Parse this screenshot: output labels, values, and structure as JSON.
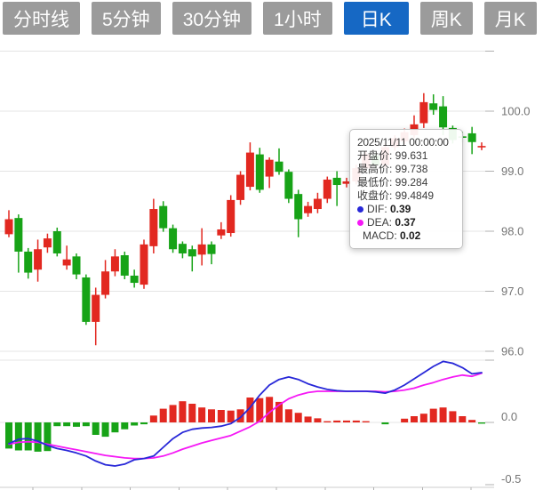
{
  "tabs": {
    "items": [
      {
        "label": "分时线",
        "name": "timeline",
        "active": false
      },
      {
        "label": "5分钟",
        "name": "5min",
        "active": false
      },
      {
        "label": "30分钟",
        "name": "30min",
        "active": false
      },
      {
        "label": "1小时",
        "name": "1hour",
        "active": false
      },
      {
        "label": "日K",
        "name": "daily-k",
        "active": true
      },
      {
        "label": "周K",
        "name": "weekly-k",
        "active": false
      },
      {
        "label": "月K",
        "name": "monthly-k",
        "active": false
      }
    ]
  },
  "tooltip": {
    "title": "2025/11/11 00:00:00",
    "rows": [
      {
        "label": "开盘价",
        "value": "99.631"
      },
      {
        "label": "最高价",
        "value": "99.738"
      },
      {
        "label": "最低价",
        "value": "99.284"
      },
      {
        "label": "收盘价",
        "value": "99.4849"
      }
    ],
    "indicator_rows": [
      {
        "label": "DIF",
        "value": "0.39",
        "dot": "dif"
      },
      {
        "label": "DEA",
        "value": "0.37",
        "dot": "dea"
      },
      {
        "label": "MACD",
        "value": "0.02",
        "dot": null
      }
    ]
  },
  "price_axis": {
    "labels": [
      {
        "text": "",
        "price": 101.0
      },
      {
        "text": "100.0",
        "price": 100.0
      },
      {
        "text": "99.0",
        "price": 99.0
      },
      {
        "text": "98.0",
        "price": 98.0
      },
      {
        "text": "97.0",
        "price": 97.0
      },
      {
        "text": "96.0",
        "price": 96.0
      }
    ]
  },
  "macd_axis": {
    "labels": [
      {
        "text": "",
        "value": 0.5,
        "line": true
      },
      {
        "text": "0.0",
        "value": 0.0,
        "line": true
      },
      {
        "text": "-0.5",
        "value": -0.5,
        "line": false
      }
    ]
  },
  "colors": {
    "up": "#e22820",
    "down": "#17a317",
    "dif_line": "#2828d8",
    "dea_line": "#f518f5",
    "grid": "#e4e4e4",
    "grid_tick": "#b0b0b0",
    "axis_line": "#cccccc",
    "axis_text": "#747474",
    "tab_bg": "#9b9b9b",
    "tab_active_bg": "#1668c4",
    "tab_text": "#ffffff"
  },
  "chart_data": [
    {
      "type": "candlestick",
      "title": "",
      "ylabel": "price",
      "yticks": [
        100.0,
        99.0,
        98.0,
        97.0,
        96.0
      ],
      "columns": [
        "open",
        "high",
        "low",
        "close"
      ],
      "candles": [
        [
          97.95,
          98.35,
          97.9,
          98.2
        ],
        [
          98.22,
          98.28,
          97.31,
          97.66
        ],
        [
          97.66,
          97.72,
          97.21,
          97.31
        ],
        [
          97.36,
          97.86,
          97.16,
          97.7
        ],
        [
          97.73,
          97.96,
          97.64,
          97.88
        ],
        [
          98.0,
          98.06,
          97.58,
          97.63
        ],
        [
          97.43,
          97.76,
          97.36,
          97.53
        ],
        [
          97.58,
          97.63,
          97.2,
          97.28
        ],
        [
          97.23,
          97.28,
          96.44,
          96.49
        ],
        [
          96.49,
          97.06,
          96.1,
          96.94
        ],
        [
          96.94,
          97.52,
          96.88,
          97.33
        ],
        [
          97.33,
          97.7,
          97.25,
          97.58
        ],
        [
          97.6,
          97.66,
          97.2,
          97.26
        ],
        [
          97.26,
          97.36,
          97.06,
          97.14
        ],
        [
          97.11,
          97.86,
          97.04,
          97.78
        ],
        [
          97.75,
          98.54,
          97.63,
          98.37
        ],
        [
          98.42,
          98.5,
          97.99,
          98.05
        ],
        [
          98.05,
          98.11,
          97.64,
          97.7
        ],
        [
          97.79,
          97.83,
          97.55,
          97.63
        ],
        [
          97.7,
          97.76,
          97.33,
          97.58
        ],
        [
          97.61,
          98.05,
          97.43,
          97.78
        ],
        [
          97.78,
          97.83,
          97.45,
          97.62
        ],
        [
          97.93,
          98.15,
          97.87,
          98.03
        ],
        [
          97.97,
          98.6,
          97.91,
          98.52
        ],
        [
          98.52,
          99.0,
          98.44,
          98.94
        ],
        [
          98.74,
          99.48,
          98.68,
          99.31
        ],
        [
          99.28,
          99.39,
          98.64,
          98.69
        ],
        [
          98.91,
          99.23,
          98.72,
          99.19
        ],
        [
          99.16,
          99.38,
          98.94,
          98.99
        ],
        [
          98.99,
          99.03,
          98.47,
          98.54
        ],
        [
          98.62,
          98.69,
          97.9,
          98.2
        ],
        [
          98.3,
          98.49,
          98.24,
          98.42
        ],
        [
          98.37,
          98.64,
          98.3,
          98.54
        ],
        [
          98.54,
          98.91,
          98.47,
          98.86
        ],
        [
          98.89,
          99.0,
          98.42,
          98.77
        ],
        [
          98.79,
          98.89,
          98.73,
          98.83
        ],
        [
          98.83,
          99.11,
          98.78,
          99.05
        ],
        [
          99.05,
          99.34,
          99.0,
          99.28
        ],
        [
          99.26,
          99.31,
          99.04,
          99.1
        ],
        [
          99.1,
          99.46,
          99.05,
          99.4
        ],
        [
          99.4,
          99.6,
          99.34,
          99.55
        ],
        [
          99.5,
          99.71,
          99.45,
          99.65
        ],
        [
          99.6,
          99.93,
          99.55,
          99.78
        ],
        [
          99.8,
          100.3,
          99.72,
          100.15
        ],
        [
          100.13,
          100.28,
          99.94,
          100.02
        ],
        [
          100.08,
          100.25,
          99.6,
          99.73
        ],
        [
          99.72,
          99.76,
          99.46,
          99.52
        ],
        [
          99.58,
          99.66,
          99.48,
          99.56
        ],
        [
          99.631,
          99.738,
          99.284,
          99.4849
        ],
        [
          99.4,
          99.48,
          99.35,
          99.42
        ]
      ]
    },
    {
      "type": "macd",
      "yticks": [
        0.5,
        0.0,
        -0.5
      ],
      "histogram": [
        -0.21,
        -0.225,
        -0.225,
        -0.235,
        -0.23,
        -0.03,
        -0.03,
        -0.035,
        -0.03,
        -0.1,
        -0.115,
        -0.08,
        -0.055,
        -0.025,
        -0.015,
        0.055,
        0.11,
        0.14,
        0.17,
        0.15,
        0.12,
        0.105,
        0.1,
        0.095,
        0.105,
        0.2,
        0.195,
        0.205,
        0.165,
        0.105,
        0.077,
        0.047,
        0.033,
        0.01,
        0.015,
        0.015,
        0.015,
        0.01,
        0,
        -0.015,
        0,
        0.03,
        0.05,
        0.07,
        0.11,
        0.12,
        0.09,
        0.05,
        0.02,
        -0.01
      ],
      "dif": [
        -0.17,
        -0.135,
        -0.13,
        -0.15,
        -0.185,
        -0.21,
        -0.225,
        -0.245,
        -0.27,
        -0.31,
        -0.34,
        -0.35,
        -0.335,
        -0.3,
        -0.29,
        -0.27,
        -0.2,
        -0.13,
        -0.08,
        -0.055,
        -0.045,
        -0.04,
        -0.03,
        -0.01,
        0.04,
        0.12,
        0.22,
        0.3,
        0.345,
        0.365,
        0.345,
        0.31,
        0.285,
        0.265,
        0.255,
        0.25,
        0.25,
        0.25,
        0.245,
        0.235,
        0.26,
        0.3,
        0.35,
        0.4,
        0.45,
        0.49,
        0.475,
        0.44,
        0.39,
        0.4
      ],
      "dea": [
        -0.175,
        -0.16,
        -0.155,
        -0.16,
        -0.175,
        -0.19,
        -0.205,
        -0.22,
        -0.235,
        -0.25,
        -0.265,
        -0.275,
        -0.285,
        -0.29,
        -0.29,
        -0.285,
        -0.27,
        -0.245,
        -0.215,
        -0.19,
        -0.165,
        -0.145,
        -0.125,
        -0.105,
        -0.07,
        -0.035,
        0.01,
        0.08,
        0.14,
        0.19,
        0.22,
        0.24,
        0.25,
        0.25,
        0.25,
        0.25,
        0.25,
        0.25,
        0.25,
        0.245,
        0.25,
        0.26,
        0.275,
        0.3,
        0.32,
        0.345,
        0.365,
        0.38,
        0.37,
        0.395
      ]
    }
  ]
}
